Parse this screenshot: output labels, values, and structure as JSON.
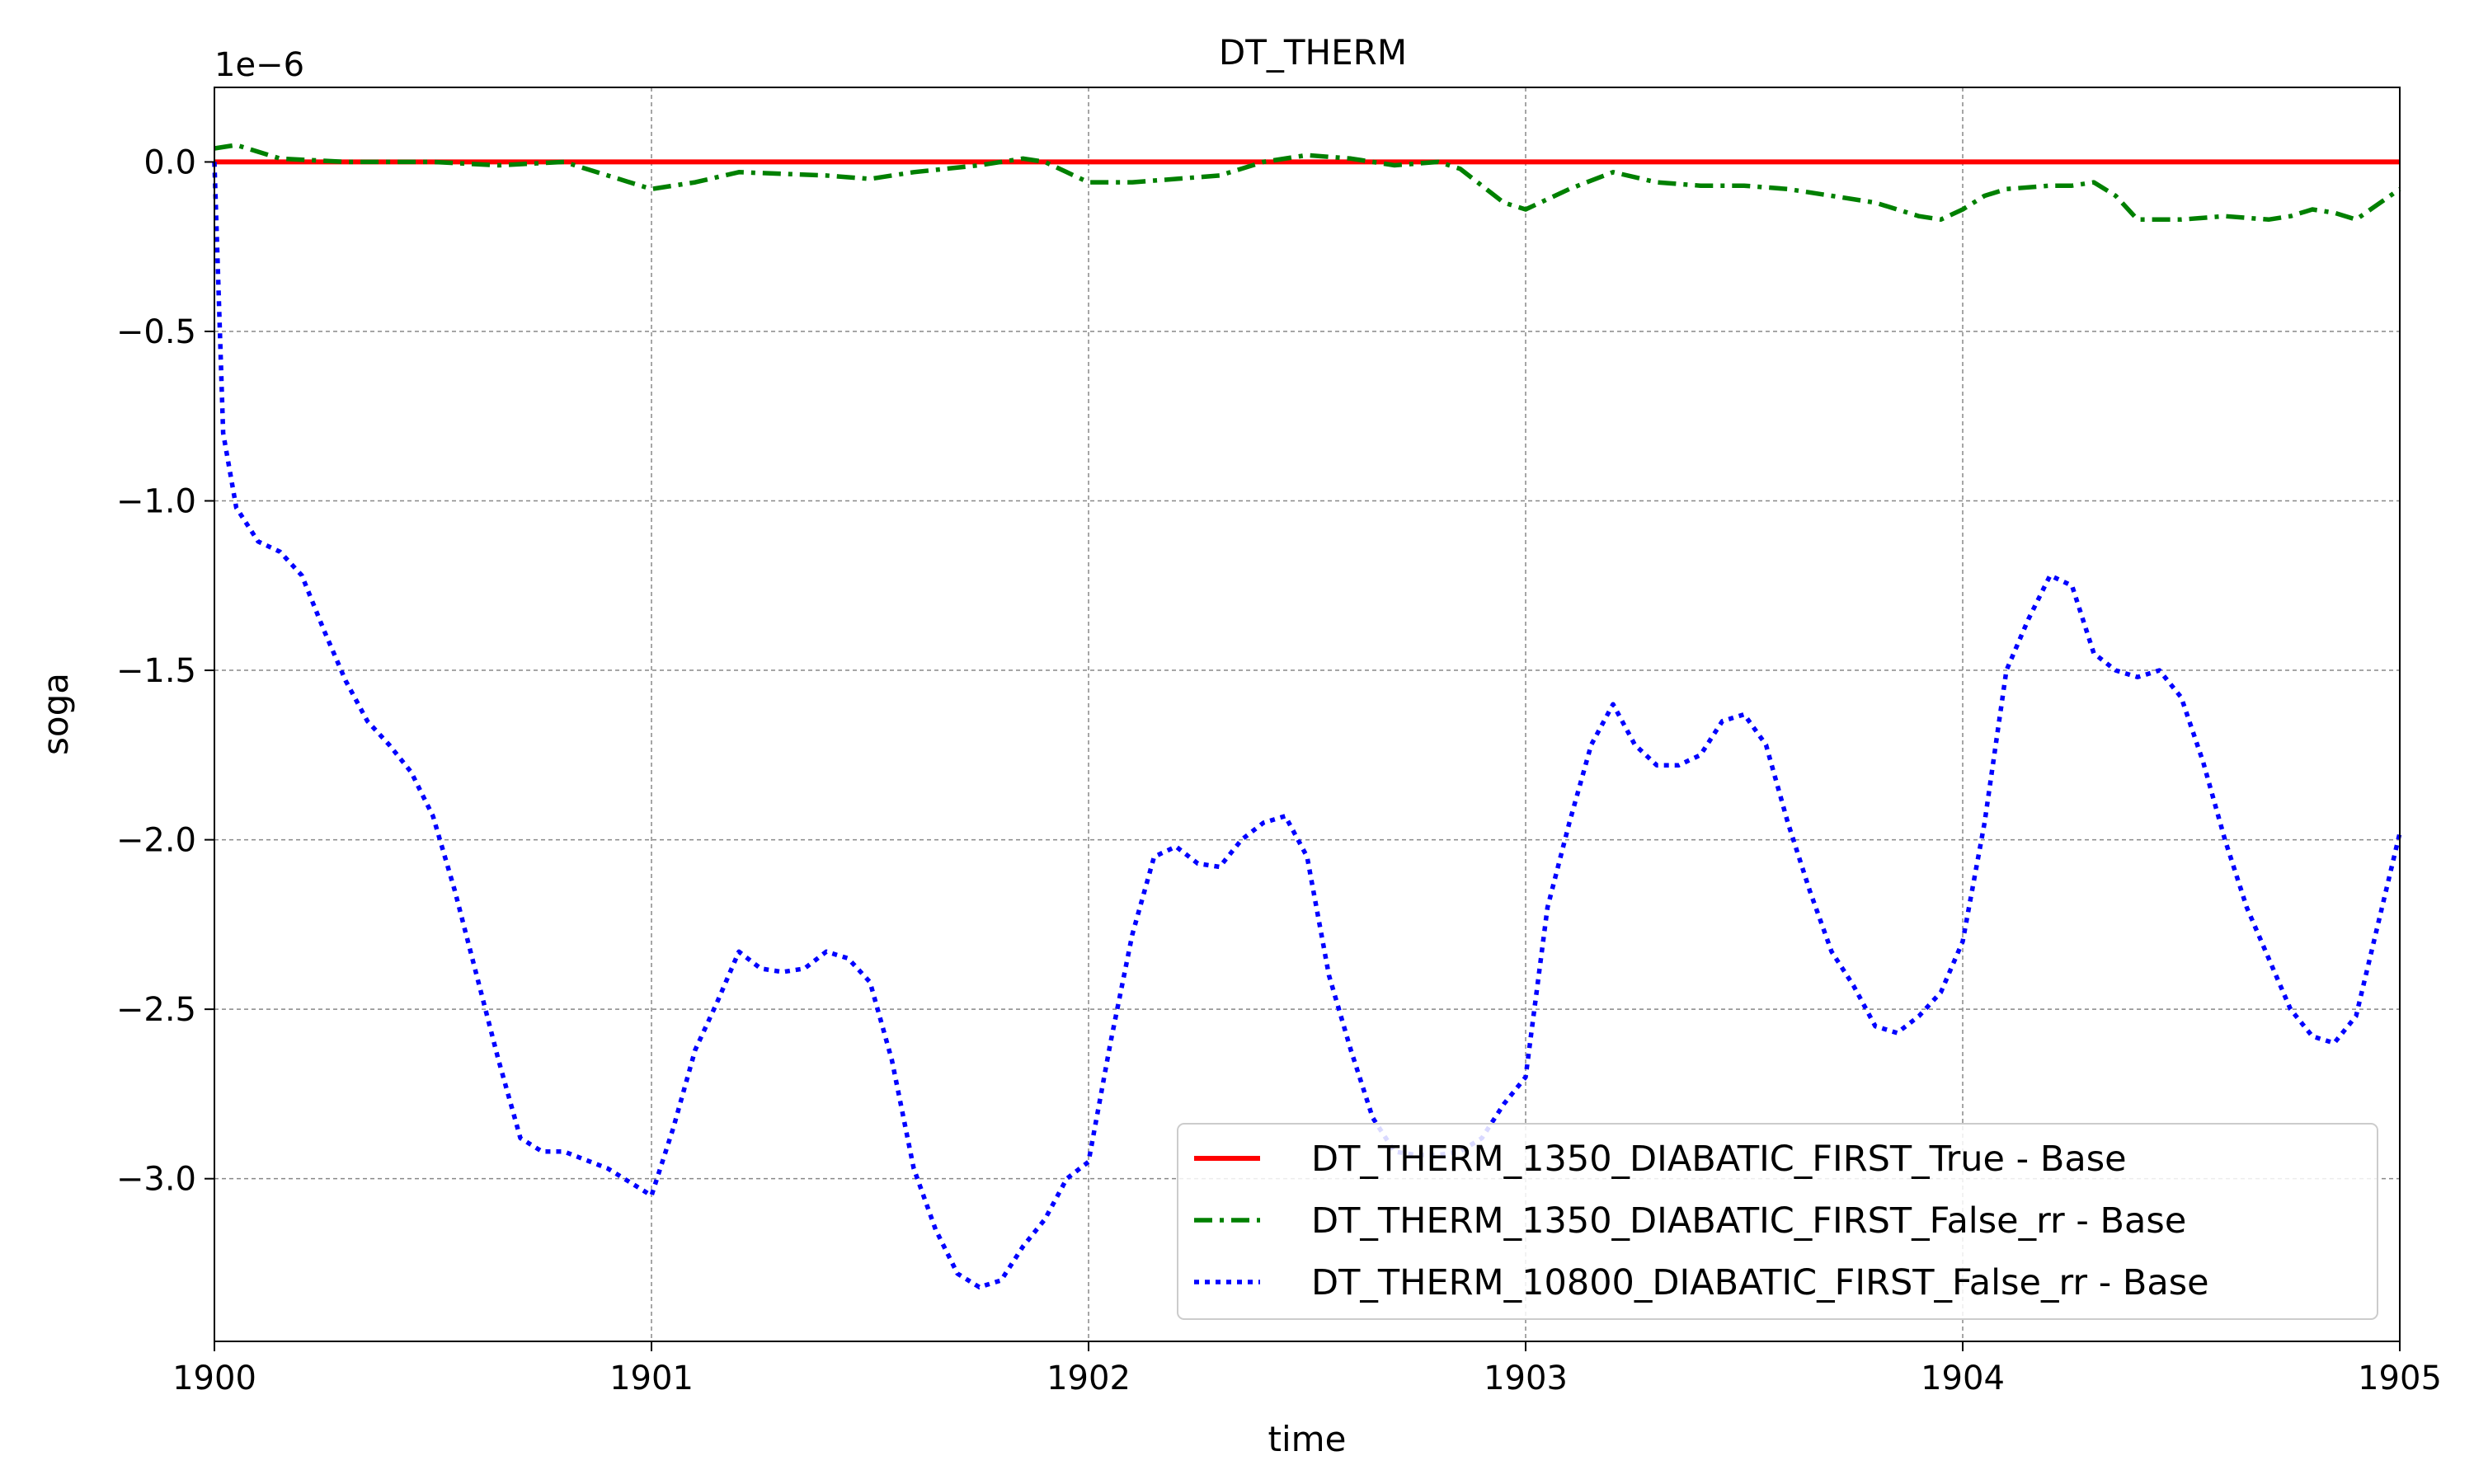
{
  "chart_data": {
    "type": "line",
    "title": "DT_THERM",
    "xlabel": "time",
    "ylabel": "soga",
    "y_offset_label": "1e−6",
    "xlim": [
      1900,
      1905
    ],
    "ylim": [
      -3.48,
      0.22
    ],
    "x_ticks": [
      1900,
      1901,
      1902,
      1903,
      1904,
      1905
    ],
    "x_tick_labels": [
      "1900",
      "1901",
      "1902",
      "1903",
      "1904",
      "1905"
    ],
    "y_ticks": [
      0.0,
      -0.5,
      -1.0,
      -1.5,
      -2.0,
      -2.5,
      -3.0
    ],
    "y_tick_labels": [
      "0.0",
      "−0.5",
      "−1.0",
      "−1.5",
      "−2.0",
      "−2.5",
      "−3.0"
    ],
    "grid": true,
    "legend_position": "lower-right",
    "series": [
      {
        "name": "DT_THERM_1350_DIABATIC_FIRST_True - Base",
        "color": "#ff0000",
        "style": "solid",
        "x": [
          1900,
          1905
        ],
        "y": [
          0.0,
          0.0
        ]
      },
      {
        "name": "DT_THERM_1350_DIABATIC_FIRST_False_rr - Base",
        "color": "#008000",
        "style": "dashdot",
        "x": [
          1900.0,
          1900.05,
          1900.15,
          1900.3,
          1900.5,
          1900.65,
          1900.8,
          1900.9,
          1901.0,
          1901.1,
          1901.2,
          1901.4,
          1901.5,
          1901.6,
          1901.75,
          1901.85,
          1901.9,
          1901.95,
          1902.0,
          1902.1,
          1902.2,
          1902.3,
          1902.4,
          1902.5,
          1902.6,
          1902.7,
          1902.8,
          1902.85,
          1902.95,
          1903.0,
          1903.1,
          1903.2,
          1903.3,
          1903.4,
          1903.5,
          1903.6,
          1903.7,
          1903.8,
          1903.9,
          1903.95,
          1904.0,
          1904.05,
          1904.1,
          1904.2,
          1904.25,
          1904.3,
          1904.35,
          1904.4,
          1904.5,
          1904.6,
          1904.7,
          1904.75,
          1904.8,
          1904.85,
          1904.9,
          1905.0
        ],
        "y": [
          0.04,
          0.05,
          0.01,
          0.0,
          0.0,
          -0.01,
          0.0,
          -0.04,
          -0.08,
          -0.06,
          -0.03,
          -0.04,
          -0.05,
          -0.03,
          -0.01,
          0.01,
          0.0,
          -0.03,
          -0.06,
          -0.06,
          -0.05,
          -0.04,
          0.0,
          0.02,
          0.01,
          -0.01,
          0.0,
          -0.02,
          -0.12,
          -0.14,
          -0.08,
          -0.03,
          -0.06,
          -0.07,
          -0.07,
          -0.08,
          -0.1,
          -0.12,
          -0.16,
          -0.17,
          -0.14,
          -0.1,
          -0.08,
          -0.07,
          -0.07,
          -0.06,
          -0.1,
          -0.17,
          -0.17,
          -0.16,
          -0.17,
          -0.16,
          -0.14,
          -0.15,
          -0.17,
          -0.08
        ]
      },
      {
        "name": "DT_THERM_10800_DIABATIC_FIRST_False_rr - Base",
        "color": "#0000ff",
        "style": "dotted",
        "x": [
          1900.0,
          1900.02,
          1900.05,
          1900.1,
          1900.15,
          1900.2,
          1900.25,
          1900.3,
          1900.35,
          1900.4,
          1900.45,
          1900.5,
          1900.55,
          1900.6,
          1900.65,
          1900.7,
          1900.75,
          1900.8,
          1900.9,
          1901.0,
          1901.05,
          1901.1,
          1901.15,
          1901.2,
          1901.25,
          1901.3,
          1901.35,
          1901.4,
          1901.45,
          1901.5,
          1901.55,
          1901.6,
          1901.65,
          1901.7,
          1901.75,
          1901.8,
          1901.85,
          1901.9,
          1901.95,
          1902.0,
          1902.05,
          1902.1,
          1902.15,
          1902.2,
          1902.25,
          1902.3,
          1902.35,
          1902.4,
          1902.45,
          1902.5,
          1902.55,
          1902.6,
          1902.65,
          1902.7,
          1902.75,
          1902.8,
          1902.85,
          1902.9,
          1902.95,
          1903.0,
          1903.05,
          1903.1,
          1903.15,
          1903.2,
          1903.25,
          1903.3,
          1903.35,
          1903.4,
          1903.45,
          1903.5,
          1903.55,
          1903.6,
          1903.65,
          1903.7,
          1903.75,
          1903.8,
          1903.85,
          1903.9,
          1903.95,
          1904.0,
          1904.05,
          1904.1,
          1904.15,
          1904.2,
          1904.25,
          1904.3,
          1904.35,
          1904.4,
          1904.45,
          1904.5,
          1904.55,
          1904.6,
          1904.65,
          1904.7,
          1904.75,
          1904.8,
          1904.85,
          1904.9,
          1904.95,
          1905.0
        ],
        "y": [
          0.0,
          -0.8,
          -1.02,
          -1.12,
          -1.15,
          -1.22,
          -1.38,
          -1.53,
          -1.65,
          -1.72,
          -1.8,
          -1.93,
          -2.15,
          -2.4,
          -2.65,
          -2.88,
          -2.92,
          -2.92,
          -2.97,
          -3.05,
          -2.85,
          -2.62,
          -2.48,
          -2.33,
          -2.38,
          -2.39,
          -2.38,
          -2.33,
          -2.35,
          -2.42,
          -2.65,
          -2.97,
          -3.15,
          -3.28,
          -3.32,
          -3.3,
          -3.2,
          -3.12,
          -3.0,
          -2.95,
          -2.6,
          -2.28,
          -2.05,
          -2.02,
          -2.07,
          -2.08,
          -2.0,
          -1.95,
          -1.93,
          -2.05,
          -2.4,
          -2.62,
          -2.82,
          -2.92,
          -2.93,
          -2.93,
          -2.92,
          -2.88,
          -2.78,
          -2.7,
          -2.2,
          -1.95,
          -1.72,
          -1.6,
          -1.72,
          -1.78,
          -1.78,
          -1.75,
          -1.65,
          -1.63,
          -1.72,
          -1.95,
          -2.15,
          -2.33,
          -2.43,
          -2.55,
          -2.57,
          -2.52,
          -2.45,
          -2.3,
          -1.95,
          -1.5,
          -1.35,
          -1.22,
          -1.25,
          -1.45,
          -1.5,
          -1.52,
          -1.5,
          -1.58,
          -1.77,
          -2.0,
          -2.2,
          -2.35,
          -2.5,
          -2.58,
          -2.6,
          -2.52,
          -2.25,
          -1.98
        ]
      }
    ]
  }
}
